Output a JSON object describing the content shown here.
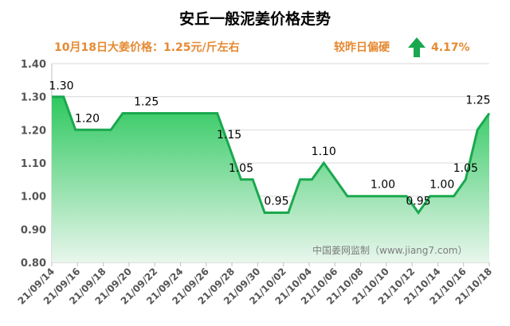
{
  "chart_data": {
    "type": "area",
    "title": "安丘一般泥姜价格走势",
    "subtitle_left": "10月18日大姜价格：1.25元/斤左右",
    "subtitle_right_label": "较昨日偏硬",
    "change_pct": "4.17%",
    "change_direction": "up",
    "watermark": "中国姜网监制（www.jiang7.com）",
    "ylim": [
      0.8,
      1.4
    ],
    "yticks": [
      "0.80",
      "0.90",
      "1.00",
      "1.10",
      "1.20",
      "1.30",
      "1.40"
    ],
    "xtick_labels": [
      "21/09/14",
      "21/09/16",
      "21/09/18",
      "21/09/20",
      "21/09/22",
      "21/09/24",
      "21/09/26",
      "21/09/28",
      "21/09/30",
      "21/10/02",
      "21/10/04",
      "21/10/06",
      "21/10/08",
      "21/10/10",
      "21/10/12",
      "21/10/14",
      "21/10/16",
      "21/10/18"
    ],
    "values": [
      1.3,
      1.3,
      1.2,
      1.2,
      1.2,
      1.2,
      1.25,
      1.25,
      1.25,
      1.25,
      1.25,
      1.25,
      1.25,
      1.25,
      1.25,
      1.15,
      1.05,
      1.05,
      0.95,
      0.95,
      0.95,
      1.05,
      1.05,
      1.1,
      1.05,
      1.0,
      1.0,
      1.0,
      1.0,
      1.0,
      1.0,
      0.95,
      1.0,
      1.0,
      1.0,
      1.05,
      1.2,
      1.25
    ],
    "data_labels": [
      {
        "index": 0,
        "text": "1.30"
      },
      {
        "index": 3,
        "text": "1.20"
      },
      {
        "index": 8,
        "text": "1.25"
      },
      {
        "index": 15,
        "text": "1.15"
      },
      {
        "index": 16,
        "text": "1.05"
      },
      {
        "index": 19,
        "text": "0.95"
      },
      {
        "index": 23,
        "text": "1.10"
      },
      {
        "index": 28,
        "text": "1.00"
      },
      {
        "index": 31,
        "text": "0.95"
      },
      {
        "index": 33,
        "text": "1.00"
      },
      {
        "index": 35,
        "text": "1.05"
      },
      {
        "index": 37,
        "text": "1.25"
      }
    ],
    "colors": {
      "title": "#000000",
      "subtitle": "#e58a33",
      "line": "#1aa84f",
      "fill_top": "#2ec85f",
      "fill_bottom": "#e8f6ec",
      "arrow": "#1aa84f",
      "axis_text": "#555555",
      "grid": "#d9d9d9"
    }
  }
}
